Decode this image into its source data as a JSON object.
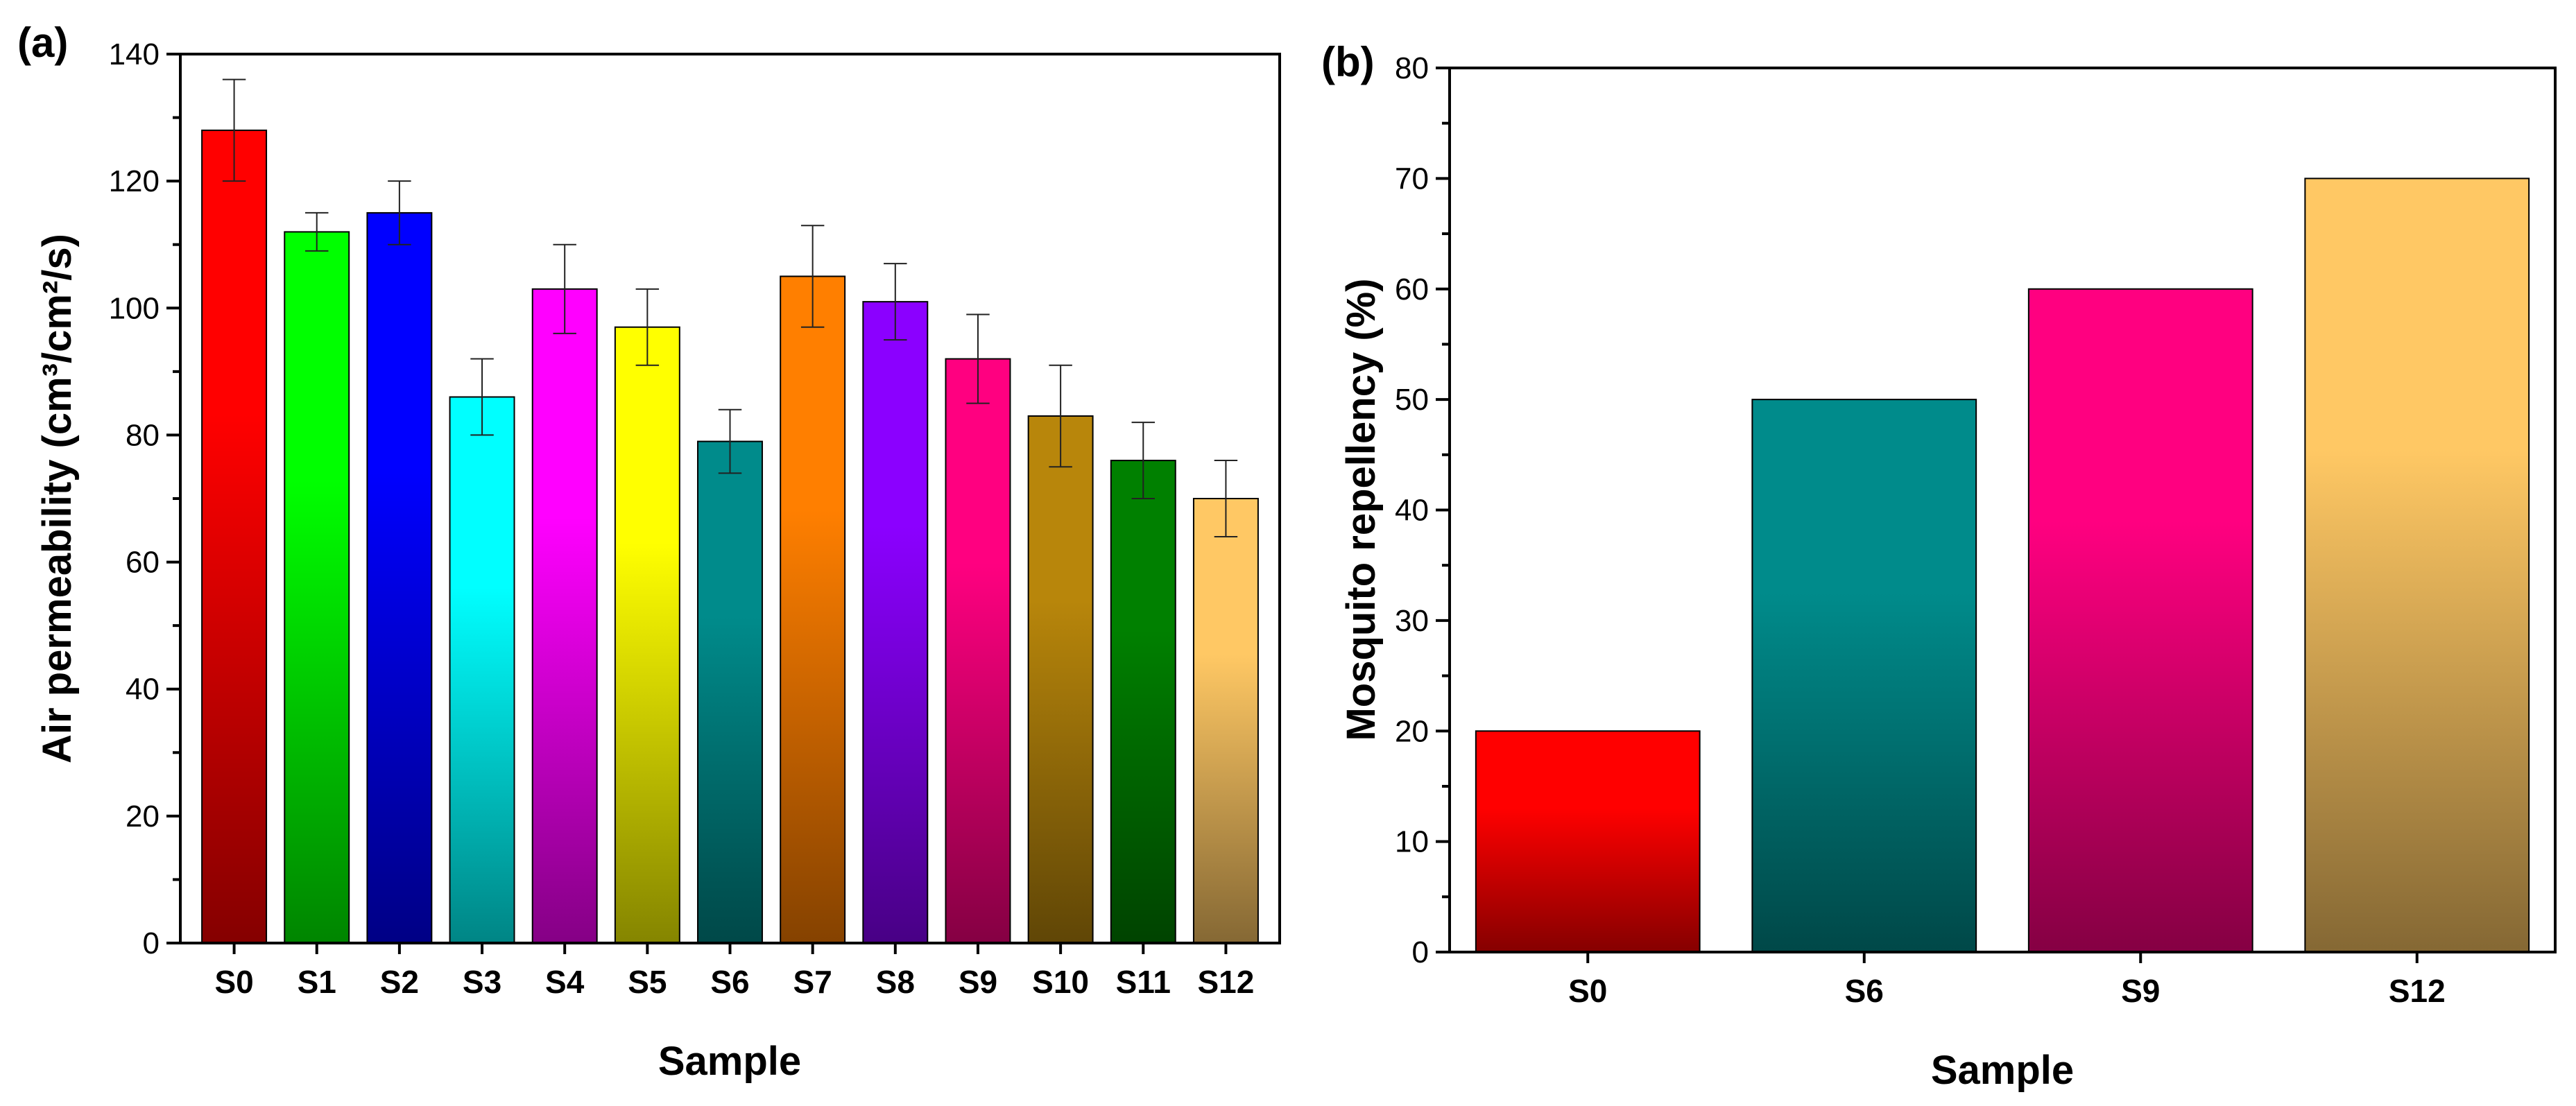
{
  "chart_data": [
    {
      "type": "bar",
      "panel_label": "(a)",
      "title": "",
      "xlabel": "Sample",
      "ylabel": "Air permeability (cm³/cm²/s)",
      "categories": [
        "S0",
        "S1",
        "S2",
        "S3",
        "S4",
        "S5",
        "S6",
        "S7",
        "S8",
        "S9",
        "S10",
        "S11",
        "S12"
      ],
      "values": [
        128,
        112,
        115,
        86,
        103,
        97,
        79,
        105,
        101,
        92,
        83,
        76,
        70
      ],
      "errors": [
        8,
        3,
        5,
        6,
        7,
        6,
        5,
        8,
        6,
        7,
        8,
        6,
        6
      ],
      "ylim": [
        0,
        140
      ],
      "yticks": [
        0,
        20,
        40,
        60,
        80,
        100,
        120,
        140
      ],
      "colors": [
        "#ff0000",
        "#00ff00",
        "#0000ff",
        "#00ffff",
        "#ff00ff",
        "#ffff00",
        "#008b8b",
        "#ff7f00",
        "#8b00ff",
        "#ff0080",
        "#b8860b",
        "#008000",
        "#ffc864"
      ],
      "grid": false
    },
    {
      "type": "bar",
      "panel_label": "(b)",
      "title": "",
      "xlabel": "Sample",
      "ylabel": "Mosquito repellency (%)",
      "categories": [
        "S0",
        "S6",
        "S9",
        "S12"
      ],
      "values": [
        20,
        50,
        60,
        70
      ],
      "ylim": [
        0,
        80
      ],
      "yticks": [
        0,
        10,
        20,
        30,
        40,
        50,
        60,
        70,
        80
      ],
      "colors": [
        "#ff0000",
        "#008b8b",
        "#ff0080",
        "#ffc864"
      ],
      "grid": false
    }
  ]
}
